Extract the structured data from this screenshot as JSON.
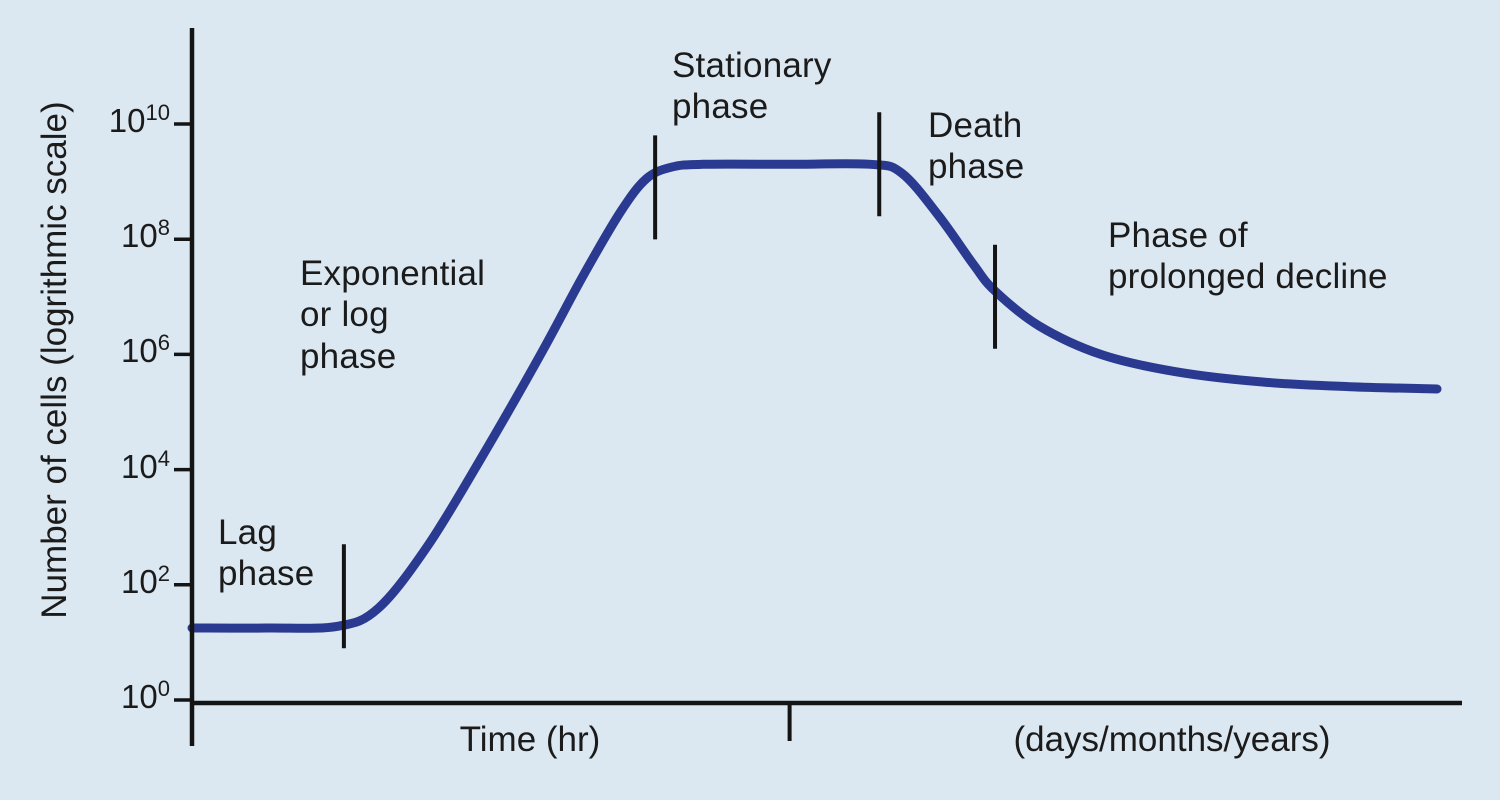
{
  "figure": {
    "background": "#dce8f1",
    "curve_color": "#2b3a91",
    "axis_color": "#141414",
    "text_color": "#1b1b1b"
  },
  "chart_data": {
    "type": "line",
    "title": "",
    "ylabel": "Number of cells (logrithmic scale)",
    "xlabel_left": "Time (hr)",
    "xlabel_right": "(days/months/years)",
    "y_scale": "log10",
    "y_range_exponents": [
      0,
      10
    ],
    "grid": false,
    "y_ticks": [
      {
        "base": "10",
        "exp": "10"
      },
      {
        "base": "10",
        "exp": "8"
      },
      {
        "base": "10",
        "exp": "6"
      },
      {
        "base": "10",
        "exp": "4"
      },
      {
        "base": "10",
        "exp": "2"
      },
      {
        "base": "10",
        "exp": "0"
      }
    ],
    "phases": [
      {
        "name": "lag",
        "label": "Lag\nphase"
      },
      {
        "name": "exponential",
        "label": "Exponential\nor log\nphase"
      },
      {
        "name": "stationary",
        "label": "Stationary\nphase"
      },
      {
        "name": "death",
        "label": "Death\nphase"
      },
      {
        "name": "prolonged-decline",
        "label": "Phase of\nprolonged decline"
      }
    ],
    "phase_boundary_ticks": [
      {
        "x_frac": 0.122,
        "log10y": 1.8
      },
      {
        "x_frac": 0.372,
        "log10y": 8.9
      },
      {
        "x_frac": 0.552,
        "log10y": 9.3
      },
      {
        "x_frac": 0.645,
        "log10y": 7.0
      }
    ],
    "x_axis_divider_frac": 0.48,
    "series": [
      {
        "name": "Number of cells",
        "points_x_frac_log10y": [
          [
            0.0,
            1.25
          ],
          [
            0.06,
            1.25
          ],
          [
            0.117,
            1.28
          ],
          [
            0.15,
            1.6
          ],
          [
            0.19,
            2.7
          ],
          [
            0.235,
            4.3
          ],
          [
            0.28,
            6.0
          ],
          [
            0.315,
            7.4
          ],
          [
            0.345,
            8.5
          ],
          [
            0.365,
            9.05
          ],
          [
            0.385,
            9.25
          ],
          [
            0.41,
            9.3
          ],
          [
            0.48,
            9.3
          ],
          [
            0.545,
            9.3
          ],
          [
            0.57,
            9.15
          ],
          [
            0.6,
            8.4
          ],
          [
            0.628,
            7.55
          ],
          [
            0.645,
            7.1
          ],
          [
            0.68,
            6.5
          ],
          [
            0.73,
            6.0
          ],
          [
            0.79,
            5.7
          ],
          [
            0.86,
            5.52
          ],
          [
            0.93,
            5.44
          ],
          [
            1.0,
            5.4
          ]
        ]
      }
    ]
  }
}
